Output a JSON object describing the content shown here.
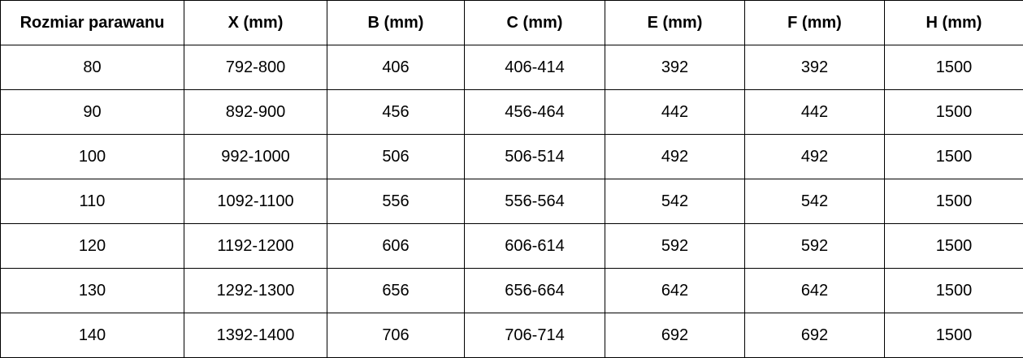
{
  "table": {
    "columns": [
      "Rozmiar parawanu",
      "X (mm)",
      "B (mm)",
      "C (mm)",
      "E (mm)",
      "F (mm)",
      "H (mm)"
    ],
    "rows": [
      [
        "80",
        "792-800",
        "406",
        "406-414",
        "392",
        "392",
        "1500"
      ],
      [
        "90",
        "892-900",
        "456",
        "456-464",
        "442",
        "442",
        "1500"
      ],
      [
        "100",
        "992-1000",
        "506",
        "506-514",
        "492",
        "492",
        "1500"
      ],
      [
        "110",
        "1092-1100",
        "556",
        "556-564",
        "542",
        "542",
        "1500"
      ],
      [
        "120",
        "1192-1200",
        "606",
        "606-614",
        "592",
        "592",
        "1500"
      ],
      [
        "130",
        "1292-1300",
        "656",
        "656-664",
        "642",
        "642",
        "1500"
      ],
      [
        "140",
        "1392-1400",
        "706",
        "706-714",
        "692",
        "692",
        "1500"
      ]
    ]
  },
  "colors": {
    "border": "#000000",
    "text": "#000000",
    "background": "#ffffff"
  }
}
